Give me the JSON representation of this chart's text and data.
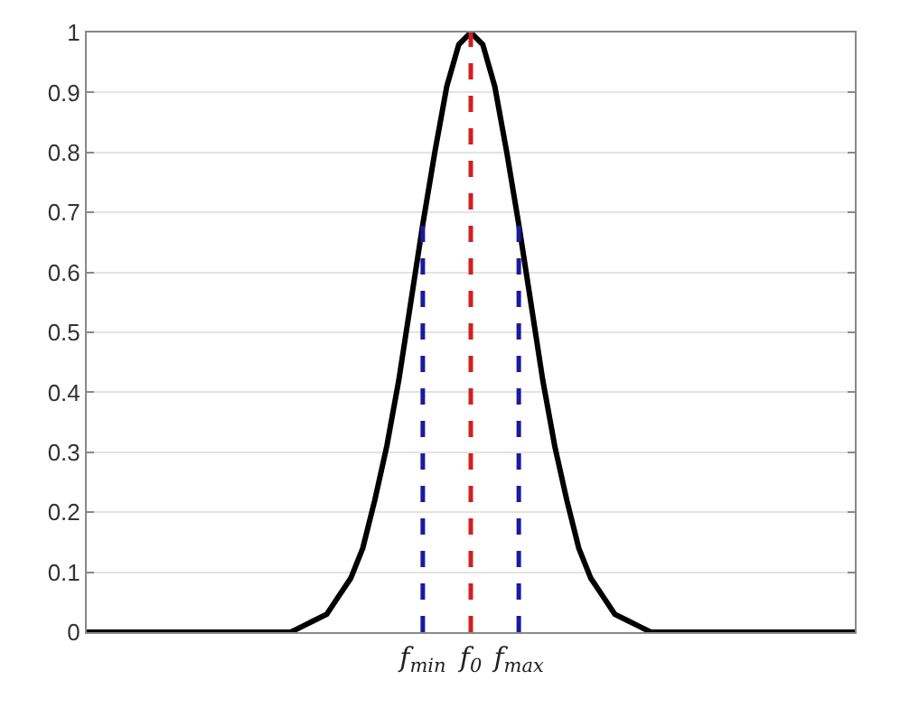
{
  "chart_data": {
    "type": "line",
    "categories": [
      null,
      null,
      null,
      null,
      null,
      null,
      null,
      null,
      null,
      null,
      null,
      null,
      null,
      null,
      null,
      null,
      null,
      null,
      null,
      null,
      null,
      null,
      null,
      null,
      null,
      null,
      null,
      null,
      "f$_{min}$",
      null,
      null,
      null,
      "f$_{0}$",
      null,
      null,
      null,
      "f$_{max}$",
      null,
      null,
      null,
      null,
      null,
      null,
      null,
      null,
      null,
      null,
      null,
      null,
      null,
      null,
      null,
      null,
      null,
      null,
      null,
      null,
      null,
      null,
      null,
      null,
      null,
      null,
      null,
      null
    ],
    "ylim": [
      0,
      1
    ],
    "yticks": [
      0,
      0.1,
      0.2,
      0.3,
      0.4,
      0.5,
      0.6,
      0.7,
      0.8,
      0.9,
      1
    ],
    "grid": "y",
    "marker": "none",
    "series": [
      {
        "color": "#000000",
        "line_style": "solid",
        "values": [
          0,
          0,
          0,
          0,
          0,
          0,
          0,
          0,
          0,
          0,
          0,
          0,
          0,
          0,
          0,
          0,
          0,
          0,
          0.01,
          0.02,
          0.03,
          0.06,
          0.09,
          0.14,
          0.22,
          0.31,
          0.42,
          0.55,
          0.68,
          0.8,
          0.91,
          0.98,
          1,
          0.98,
          0.91,
          0.8,
          0.68,
          0.55,
          0.42,
          0.31,
          0.22,
          0.14,
          0.09,
          0.06,
          0.03,
          0.02,
          0.01,
          0,
          0,
          0,
          0,
          0,
          0,
          0,
          0,
          0,
          0,
          0,
          0,
          0,
          0,
          0,
          0,
          0,
          0
        ]
      },
      {
        "color": "#1a1aa0",
        "line_style": "dashed",
        "x": [
          "f$_{min}$",
          "f$_{min}$"
        ],
        "values": [
          0,
          0.68
        ]
      },
      {
        "color": "#d02020",
        "line_style": "dashed",
        "x": [
          "f$_{0}$",
          "f$_{0}$"
        ],
        "values": [
          0,
          1
        ]
      },
      {
        "color": "#1a1aa0",
        "line_style": "dashed",
        "x": [
          "f$_{max}$",
          "f$_{max}$"
        ],
        "values": [
          0,
          0.68
        ]
      }
    ]
  }
}
